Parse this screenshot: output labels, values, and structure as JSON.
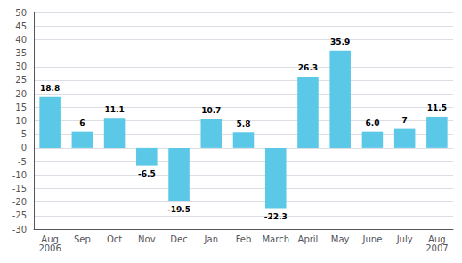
{
  "chart_data": {
    "type": "bar",
    "categories": [
      "Aug\n2006",
      "Sep",
      "Oct",
      "Nov",
      "Dec",
      "Jan",
      "Feb",
      "March",
      "April",
      "May",
      "June",
      "July",
      "Aug\n2007"
    ],
    "values": [
      18.8,
      6,
      11.1,
      -6.5,
      -19.5,
      10.7,
      5.8,
      -22.3,
      26.3,
      35.9,
      6.0,
      7,
      11.5
    ],
    "value_labels": [
      "18.8",
      "6",
      "11.1",
      "-6.5",
      "-19.5",
      "10.7",
      "5.8",
      "-22.3",
      "26.3",
      "35.9",
      "6.0",
      "7",
      "11.5"
    ],
    "color": "#5BC8E8",
    "ylim": [
      -30,
      50
    ],
    "yticks": [
      -30,
      -25,
      -20,
      -15,
      -10,
      -5,
      0,
      5,
      10,
      15,
      20,
      25,
      30,
      35,
      40,
      45,
      50
    ],
    "grid": true,
    "data_labels": true
  }
}
